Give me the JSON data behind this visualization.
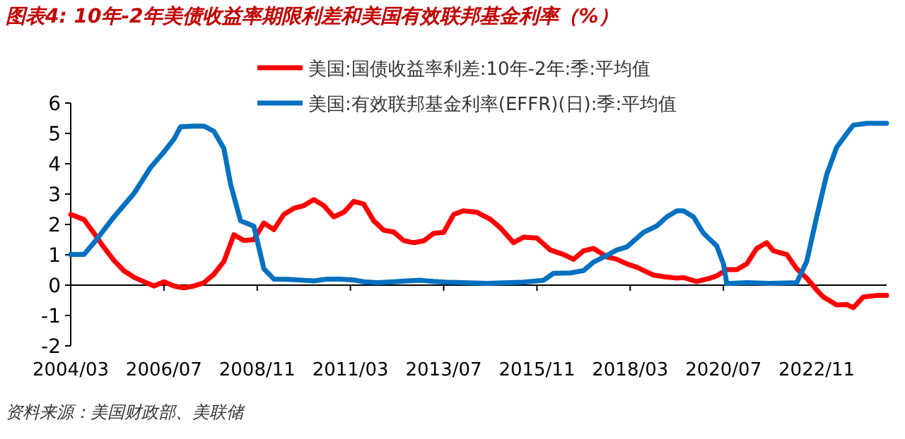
{
  "chart_data": {
    "type": "line",
    "title": "图表4:  10年-2年美债收益率期限利差和美国有效联邦基金利率（%）",
    "annotations": [
      "资料来源：美国财政部、美联储"
    ],
    "xlim": [
      "2004-03",
      "2024-08"
    ],
    "ylim": [
      -2,
      6
    ],
    "yticks": [
      -2,
      -1,
      0,
      1,
      2,
      3,
      4,
      5,
      6
    ],
    "xticks": [
      {
        "value": "2004-03",
        "label": "2004/03"
      },
      {
        "value": "2006-07",
        "label": "2006/07"
      },
      {
        "value": "2008-11",
        "label": "2008/11"
      },
      {
        "value": "2011-03",
        "label": "2011/03"
      },
      {
        "value": "2013-07",
        "label": "2013/07"
      },
      {
        "value": "2015-11",
        "label": "2015/11"
      },
      {
        "value": "2018-03",
        "label": "2018/03"
      },
      {
        "value": "2020-07",
        "label": "2020/07"
      },
      {
        "value": "2022-11",
        "label": "2022/11"
      }
    ],
    "legend": "top",
    "marker": "none",
    "line_style": "solid",
    "series": [
      {
        "name": "美国:国债收益率利差:10年-2年:季:平均值",
        "color": "#ff0000",
        "x": [
          "2004-03",
          "2004-07",
          "2004-10",
          "2005-01",
          "2005-04",
          "2005-07",
          "2005-10",
          "2005-12",
          "2006-04",
          "2006-07",
          "2006-10",
          "2007-01",
          "2007-04",
          "2007-07",
          "2007-10",
          "2008-01",
          "2008-04",
          "2008-07",
          "2008-10",
          "2009-01",
          "2009-04",
          "2009-07",
          "2009-10",
          "2010-01",
          "2010-04",
          "2010-07",
          "2010-10",
          "2011-01",
          "2011-04",
          "2011-07",
          "2011-10",
          "2012-01",
          "2012-04",
          "2012-07",
          "2012-10",
          "2013-01",
          "2013-04",
          "2013-07",
          "2013-10",
          "2014-01",
          "2014-05",
          "2014-09",
          "2014-12",
          "2015-04",
          "2015-07",
          "2015-11",
          "2016-03",
          "2016-07",
          "2016-10",
          "2017-01",
          "2017-04",
          "2017-08",
          "2017-11",
          "2018-02",
          "2018-05",
          "2018-10",
          "2019-01",
          "2019-05",
          "2019-07",
          "2019-11",
          "2020-03",
          "2020-05",
          "2020-08",
          "2020-11",
          "2021-02",
          "2021-05",
          "2021-08",
          "2021-10",
          "2022-02",
          "2022-05",
          "2022-08",
          "2022-11",
          "2023-01",
          "2023-05",
          "2023-08",
          "2023-10",
          "2024-01",
          "2024-05",
          "2024-08"
        ],
        "values": [
          2.33,
          2.16,
          1.71,
          1.24,
          0.81,
          0.47,
          0.26,
          0.16,
          -0.03,
          0.11,
          -0.03,
          -0.09,
          -0.03,
          0.08,
          0.36,
          0.78,
          1.66,
          1.47,
          1.5,
          2.05,
          1.83,
          2.33,
          2.53,
          2.62,
          2.82,
          2.62,
          2.25,
          2.4,
          2.76,
          2.67,
          2.12,
          1.81,
          1.75,
          1.47,
          1.4,
          1.46,
          1.71,
          1.74,
          2.33,
          2.45,
          2.4,
          2.17,
          1.89,
          1.4,
          1.58,
          1.55,
          1.16,
          1.01,
          0.85,
          1.13,
          1.21,
          0.93,
          0.85,
          0.7,
          0.59,
          0.33,
          0.28,
          0.23,
          0.25,
          0.12,
          0.23,
          0.31,
          0.51,
          0.51,
          0.7,
          1.21,
          1.4,
          1.13,
          1.01,
          0.54,
          0.23,
          -0.16,
          -0.39,
          -0.65,
          -0.64,
          -0.74,
          -0.39,
          -0.34,
          -0.34
        ]
      },
      {
        "name": "美国:有效联邦基金利率(EFFR)(日):季:平均值",
        "color": "#0070c0",
        "x": [
          "2004-03",
          "2004-07",
          "2004-10",
          "2005-04",
          "2005-10",
          "2006-03",
          "2006-07",
          "2006-10",
          "2006-12",
          "2007-04",
          "2007-07",
          "2007-10",
          "2008-01",
          "2008-03",
          "2008-06",
          "2008-10",
          "2009-01",
          "2009-04",
          "2009-08",
          "2010-01",
          "2010-04",
          "2010-08",
          "2010-12",
          "2011-04",
          "2011-07",
          "2011-11",
          "2012-04",
          "2012-08",
          "2012-12",
          "2013-04",
          "2013-09",
          "2014-01",
          "2014-08",
          "2015-06",
          "2016-01",
          "2016-04",
          "2016-09",
          "2017-01",
          "2017-04",
          "2017-08",
          "2017-11",
          "2018-02",
          "2018-07",
          "2018-11",
          "2019-02",
          "2019-05",
          "2019-07",
          "2019-10",
          "2020-01",
          "2020-05",
          "2020-07",
          "2020-08",
          "2021-02",
          "2021-09",
          "2022-05",
          "2022-08",
          "2022-11",
          "2023-02",
          "2023-05",
          "2023-08",
          "2023-10",
          "2024-02",
          "2024-08"
        ],
        "values": [
          1.01,
          1.01,
          1.4,
          2.25,
          3.02,
          3.88,
          4.39,
          4.81,
          5.22,
          5.24,
          5.24,
          5.07,
          4.5,
          3.33,
          2.12,
          1.94,
          0.54,
          0.2,
          0.19,
          0.16,
          0.14,
          0.2,
          0.2,
          0.17,
          0.11,
          0.08,
          0.11,
          0.14,
          0.16,
          0.12,
          0.09,
          0.08,
          0.06,
          0.09,
          0.16,
          0.39,
          0.4,
          0.48,
          0.76,
          0.98,
          1.16,
          1.26,
          1.74,
          1.95,
          2.25,
          2.45,
          2.45,
          2.25,
          1.71,
          1.29,
          0.7,
          0.05,
          0.08,
          0.06,
          0.08,
          0.78,
          2.25,
          3.64,
          4.54,
          4.99,
          5.27,
          5.33,
          5.33
        ]
      }
    ]
  }
}
